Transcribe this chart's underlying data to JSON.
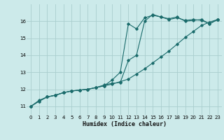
{
  "bg_color": "#cceaea",
  "grid_color": "#aacece",
  "line_color": "#1a6b6b",
  "xlabel": "Humidex (Indice chaleur)",
  "xlim": [
    -0.5,
    23.5
  ],
  "ylim": [
    10.5,
    17.0
  ],
  "yticks": [
    11,
    12,
    13,
    14,
    15,
    16
  ],
  "xticks": [
    0,
    1,
    2,
    3,
    4,
    5,
    6,
    7,
    8,
    9,
    10,
    11,
    12,
    13,
    14,
    15,
    16,
    17,
    18,
    19,
    20,
    21,
    22,
    23
  ],
  "line1_x": [
    0,
    1,
    2,
    3,
    4,
    5,
    6,
    7,
    8,
    9,
    10,
    11,
    12,
    13,
    14,
    15,
    16,
    17,
    18,
    19,
    20,
    21,
    22,
    23
  ],
  "line1_y": [
    11.0,
    11.35,
    11.55,
    11.65,
    11.8,
    11.9,
    11.95,
    12.0,
    12.1,
    12.2,
    12.3,
    12.45,
    12.6,
    12.9,
    13.2,
    13.55,
    13.9,
    14.25,
    14.65,
    15.05,
    15.4,
    15.75,
    15.95,
    16.1
  ],
  "line2_x": [
    0,
    1,
    2,
    3,
    4,
    5,
    6,
    7,
    8,
    9,
    10,
    11,
    12,
    13,
    14,
    15,
    16,
    17,
    18,
    19,
    20,
    21,
    22,
    23
  ],
  "line2_y": [
    11.0,
    11.3,
    11.55,
    11.65,
    11.8,
    11.9,
    11.95,
    12.0,
    12.1,
    12.2,
    12.55,
    13.0,
    15.85,
    15.55,
    16.2,
    16.35,
    16.25,
    16.1,
    16.2,
    16.05,
    16.1,
    16.05,
    15.85,
    16.1
  ],
  "line3_x": [
    0,
    1,
    2,
    3,
    4,
    5,
    6,
    7,
    8,
    9,
    10,
    11,
    12,
    13,
    14,
    15,
    16,
    17,
    18,
    19,
    20,
    21,
    22,
    23
  ],
  "line3_y": [
    11.0,
    11.3,
    11.55,
    11.65,
    11.8,
    11.9,
    11.95,
    12.0,
    12.1,
    12.25,
    12.35,
    12.4,
    13.7,
    14.0,
    16.0,
    16.4,
    16.25,
    16.15,
    16.25,
    16.0,
    16.05,
    16.1,
    15.85,
    16.1
  ]
}
